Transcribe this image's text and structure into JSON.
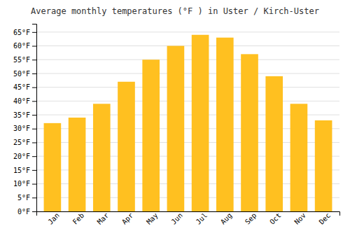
{
  "chart_data": {
    "type": "bar",
    "title": "Average monthly temperatures (°F ) in Uster / Kirch-Uster",
    "categories": [
      "Jan",
      "Feb",
      "Mar",
      "Apr",
      "May",
      "Jun",
      "Jul",
      "Aug",
      "Sep",
      "Oct",
      "Nov",
      "Dec"
    ],
    "values": [
      32,
      34,
      39,
      47,
      55,
      60,
      64,
      63,
      57,
      49,
      39,
      33
    ],
    "color": "#FFC020",
    "ylim": [
      0,
      68
    ],
    "yticks": [
      {
        "value": 0,
        "label": "0°F"
      },
      {
        "value": 5,
        "label": "5°F"
      },
      {
        "value": 10,
        "label": "10°F"
      },
      {
        "value": 15,
        "label": "15°F"
      },
      {
        "value": 20,
        "label": "20°F"
      },
      {
        "value": 25,
        "label": "25°F"
      },
      {
        "value": 30,
        "label": "30°F"
      },
      {
        "value": 35,
        "label": "35°F"
      },
      {
        "value": 40,
        "label": "40°F"
      },
      {
        "value": 45,
        "label": "45°F"
      },
      {
        "value": 50,
        "label": "50°F"
      },
      {
        "value": 55,
        "label": "55°F"
      },
      {
        "value": 60,
        "label": "60°F"
      },
      {
        "value": 65,
        "label": "65°F"
      }
    ],
    "grid": true
  }
}
